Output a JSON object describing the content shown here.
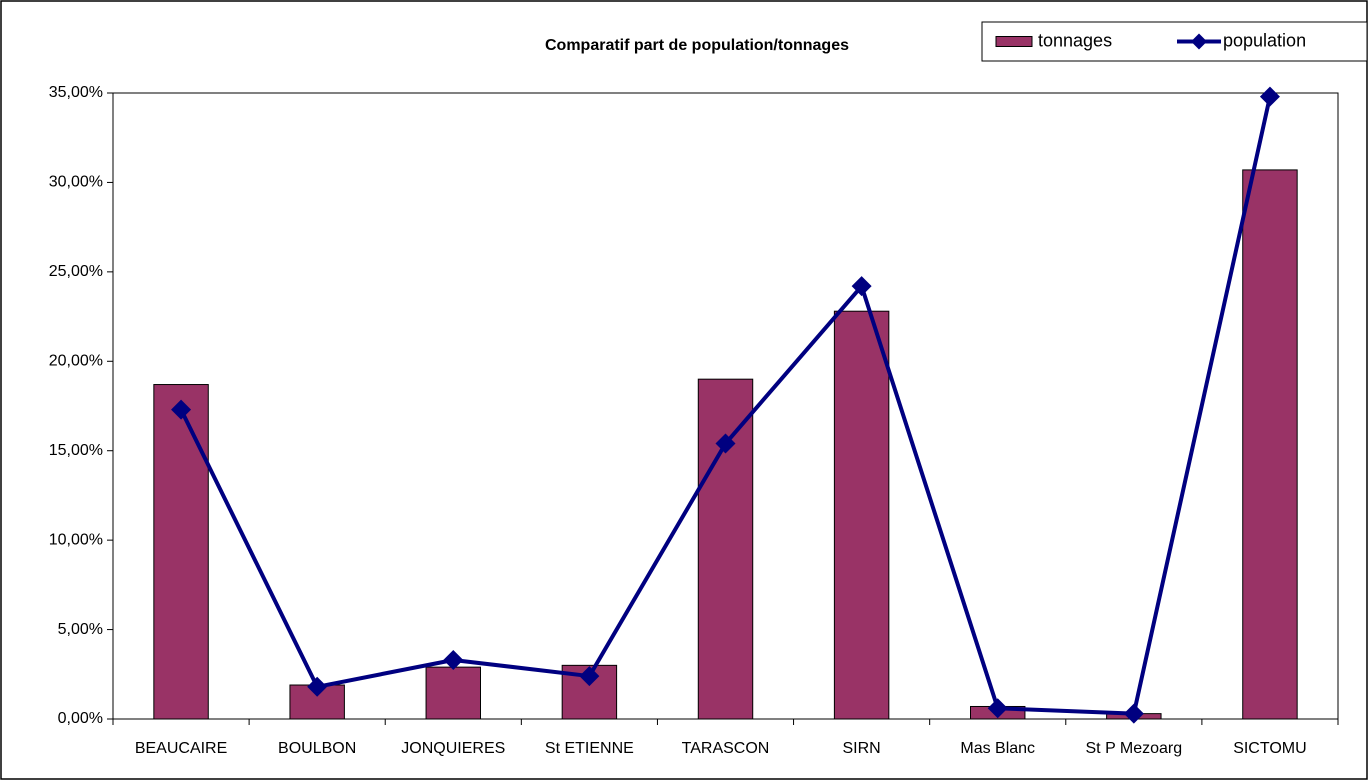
{
  "chart_data": {
    "type": "bar-line",
    "title": "Comparatif part de population/tonnages",
    "categories": [
      "BEAUCAIRE",
      "BOULBON",
      "JONQUIERES",
      "St ETIENNE",
      "TARASCON",
      "SIRN",
      "Mas Blanc",
      "St P Mezoarg",
      "SICTOMU"
    ],
    "series": [
      {
        "name": "tonnages",
        "type": "bar",
        "color": "#993366",
        "values": [
          18.7,
          1.9,
          2.9,
          3.0,
          19.0,
          22.8,
          0.7,
          0.3,
          30.7
        ]
      },
      {
        "name": "population",
        "type": "line",
        "color": "#000080",
        "values": [
          17.3,
          1.8,
          3.3,
          2.4,
          15.4,
          24.2,
          0.6,
          0.3,
          34.8
        ]
      }
    ],
    "ylim": [
      0,
      35
    ],
    "yticks": [
      {
        "value": 0,
        "label": "0,00%"
      },
      {
        "value": 5,
        "label": "5,00%"
      },
      {
        "value": 10,
        "label": "10,00%"
      },
      {
        "value": 15,
        "label": "15,00%"
      },
      {
        "value": 20,
        "label": "20,00%"
      },
      {
        "value": 25,
        "label": "25,00%"
      },
      {
        "value": 30,
        "label": "30,00%"
      },
      {
        "value": 35,
        "label": "35,00%"
      }
    ],
    "grid": false,
    "legend": "top-right"
  }
}
